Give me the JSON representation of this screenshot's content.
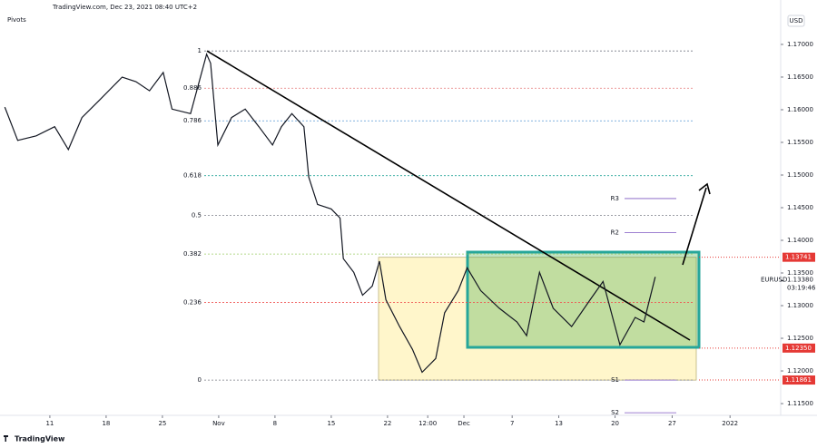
{
  "chart_data": {
    "type": "line",
    "title": "TradingView.com, Dec 23, 2021 08:40 UTC+2",
    "indicator": "Pivots",
    "currency": "USD",
    "brand": "TradingView",
    "x": [
      5.4,
      7.0,
      9.3,
      11.6,
      13.3,
      15.0,
      17.2,
      20.0,
      21.7,
      23.4,
      25.1,
      26.2,
      28.5,
      30.5,
      31.0,
      31.9,
      33.6,
      35.3,
      37.0,
      38.7,
      39.8,
      41.1,
      42.6,
      43.2,
      44.3,
      46.0,
      47.1,
      47.5,
      48.8,
      49.9,
      51.1,
      52.0,
      52.8,
      54.5,
      56.1,
      57.3,
      59.0,
      60.1,
      61.8,
      62.9,
      64.6,
      66.9,
      69.1,
      70.3,
      71.9,
      73.6,
      75.9,
      78.2,
      79.8,
      81.9,
      83.8,
      84.9,
      86.3
    ],
    "series": [
      {
        "name": "EURUSD",
        "color": "#131722",
        "values": [
          1.1604,
          1.1553,
          1.156,
          1.1574,
          1.1539,
          1.1588,
          1.1615,
          1.165,
          1.1643,
          1.1629,
          1.1657,
          1.1601,
          1.1594,
          1.1685,
          1.1671,
          1.1546,
          1.1588,
          1.1601,
          1.1574,
          1.1546,
          1.1574,
          1.1594,
          1.1574,
          1.1497,
          1.1455,
          1.1448,
          1.1434,
          1.1372,
          1.1351,
          1.1316,
          1.133,
          1.1368,
          1.1309,
          1.1268,
          1.1233,
          1.1198,
          1.1219,
          1.1289,
          1.1323,
          1.1358,
          1.1323,
          1.1296,
          1.1275,
          1.1254,
          1.1351,
          1.1296,
          1.1268,
          1.1309,
          1.1337,
          1.124,
          1.1282,
          1.1275,
          1.1344
        ]
      }
    ],
    "xlim": [
      4.8,
      101.9
    ],
    "ylim": [
      1.1132,
      1.1743
    ],
    "xticks": [
      {
        "value": 11,
        "label": "11"
      },
      {
        "value": 18,
        "label": "18"
      },
      {
        "value": 25,
        "label": "25"
      },
      {
        "value": 32,
        "label": "Nov"
      },
      {
        "value": 39,
        "label": "8"
      },
      {
        "value": 46,
        "label": "15"
      },
      {
        "value": 53,
        "label": "22"
      },
      {
        "value": 58,
        "label": "12:00"
      },
      {
        "value": 62.5,
        "label": "Dec"
      },
      {
        "value": 68.5,
        "label": "7"
      },
      {
        "value": 74.3,
        "label": "13"
      },
      {
        "value": 81.3,
        "label": "20"
      },
      {
        "value": 88.4,
        "label": "27"
      },
      {
        "value": 95.6,
        "label": "2022"
      }
    ],
    "yticks": [
      {
        "value": 1.17,
        "label": "1.17000"
      },
      {
        "value": 1.165,
        "label": "1.16500"
      },
      {
        "value": 1.16,
        "label": "1.16000"
      },
      {
        "value": 1.155,
        "label": "1.15500"
      },
      {
        "value": 1.15,
        "label": "1.15000"
      },
      {
        "value": 1.145,
        "label": "1.14500"
      },
      {
        "value": 1.14,
        "label": "1.14000"
      },
      {
        "value": 1.135,
        "label": "1.13500"
      },
      {
        "value": 1.13,
        "label": "1.13000"
      },
      {
        "value": 1.125,
        "label": "1.12500"
      },
      {
        "value": 1.12,
        "label": "1.12000"
      },
      {
        "value": 1.115,
        "label": "1.11500"
      }
    ],
    "fib_levels": [
      {
        "label": "1",
        "value": 1.169,
        "color": "#787b86"
      },
      {
        "label": "0.886",
        "value": 1.1633,
        "color": "#e57373"
      },
      {
        "label": "0.786",
        "value": 1.1583,
        "color": "#5b9bd5"
      },
      {
        "label": "0.618",
        "value": 1.1499,
        "color": "#26a69a"
      },
      {
        "label": "0.5",
        "value": 1.1438,
        "color": "#787b86"
      },
      {
        "label": "0.382",
        "value": 1.1379,
        "color": "#9ccc65"
      },
      {
        "label": "0.236",
        "value": 1.1305,
        "color": "#ef5350"
      },
      {
        "label": "0",
        "value": 1.1186,
        "color": "#787b86"
      }
    ],
    "pivots": [
      {
        "label": "R3",
        "value": 1.1464
      },
      {
        "label": "R2",
        "value": 1.1412
      },
      {
        "label": "S1",
        "value": 1.1186
      },
      {
        "label": "S2",
        "value": 1.1136
      }
    ],
    "price_labels": [
      {
        "value": 1.13741,
        "label": "1.13741"
      },
      {
        "value": 1.1235,
        "label": "1.12350"
      },
      {
        "value": 1.11861,
        "label": "1.11861"
      }
    ],
    "last_price": {
      "symbol": "EURUSD",
      "value": 1.1338,
      "label": "1.13380",
      "countdown": "03:19:46"
    }
  }
}
